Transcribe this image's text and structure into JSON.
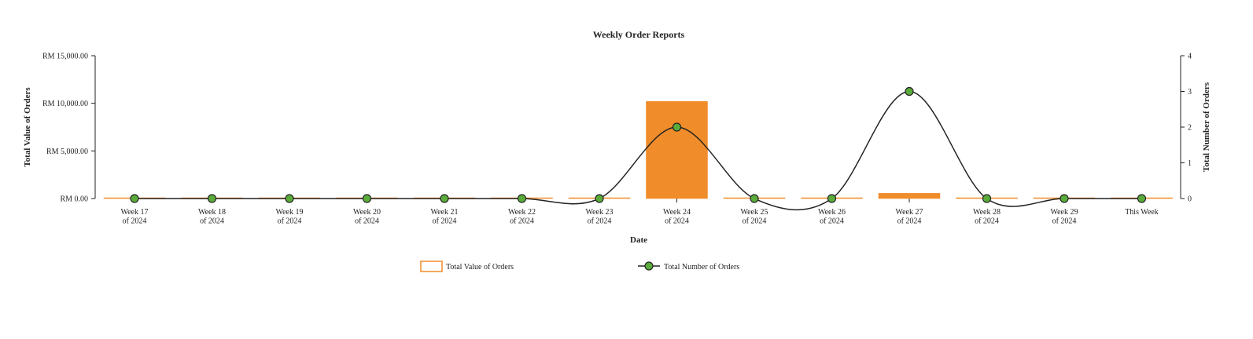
{
  "chart_data": {
    "type": "bar",
    "title": "Weekly Order Reports",
    "xlabel": "Date",
    "ylabel_left": "Total Value of Orders",
    "ylabel_right": "Total Number of Orders",
    "categories": [
      [
        "Week 17",
        "of 2024"
      ],
      [
        "Week 18",
        "of 2024"
      ],
      [
        "Week 19",
        "of 2024"
      ],
      [
        "Week 20",
        "of 2024"
      ],
      [
        "Week 21",
        "of 2024"
      ],
      [
        "Week 22",
        "of 2024"
      ],
      [
        "Week 23",
        "of 2024"
      ],
      [
        "Week 24",
        "of 2024"
      ],
      [
        "Week 25",
        "of 2024"
      ],
      [
        "Week 26",
        "of 2024"
      ],
      [
        "Week 27",
        "of 2024"
      ],
      [
        "Week 28",
        "of 2024"
      ],
      [
        "Week 29",
        "of 2024"
      ],
      [
        "This Week"
      ]
    ],
    "ylim_left": [
      0,
      15000
    ],
    "yticks_left": [
      "RM 0.00",
      "RM 5,000.00",
      "RM 10,000.00",
      "RM 15,000.00"
    ],
    "yticks_left_values": [
      0,
      5000,
      10000,
      15000
    ],
    "ylim_right": [
      0,
      4
    ],
    "yticks_right": [
      "0",
      "1",
      "2",
      "3",
      "4"
    ],
    "yticks_right_values": [
      0,
      1,
      2,
      3,
      4
    ],
    "series": [
      {
        "name": "Total Value of Orders",
        "type": "bar",
        "axis": "left",
        "color": "#f08c2a",
        "values": [
          0,
          0,
          0,
          0,
          0,
          0,
          0,
          10200,
          0,
          0,
          550,
          0,
          0,
          0
        ]
      },
      {
        "name": "Total Number of Orders",
        "type": "line",
        "axis": "right",
        "color": "#222222",
        "marker_color": "#5aac3a",
        "values": [
          0,
          0,
          0,
          0,
          0,
          0,
          0,
          2,
          0,
          0,
          3,
          0,
          0,
          0
        ]
      }
    ],
    "grid": false,
    "legend_position": "bottom"
  }
}
